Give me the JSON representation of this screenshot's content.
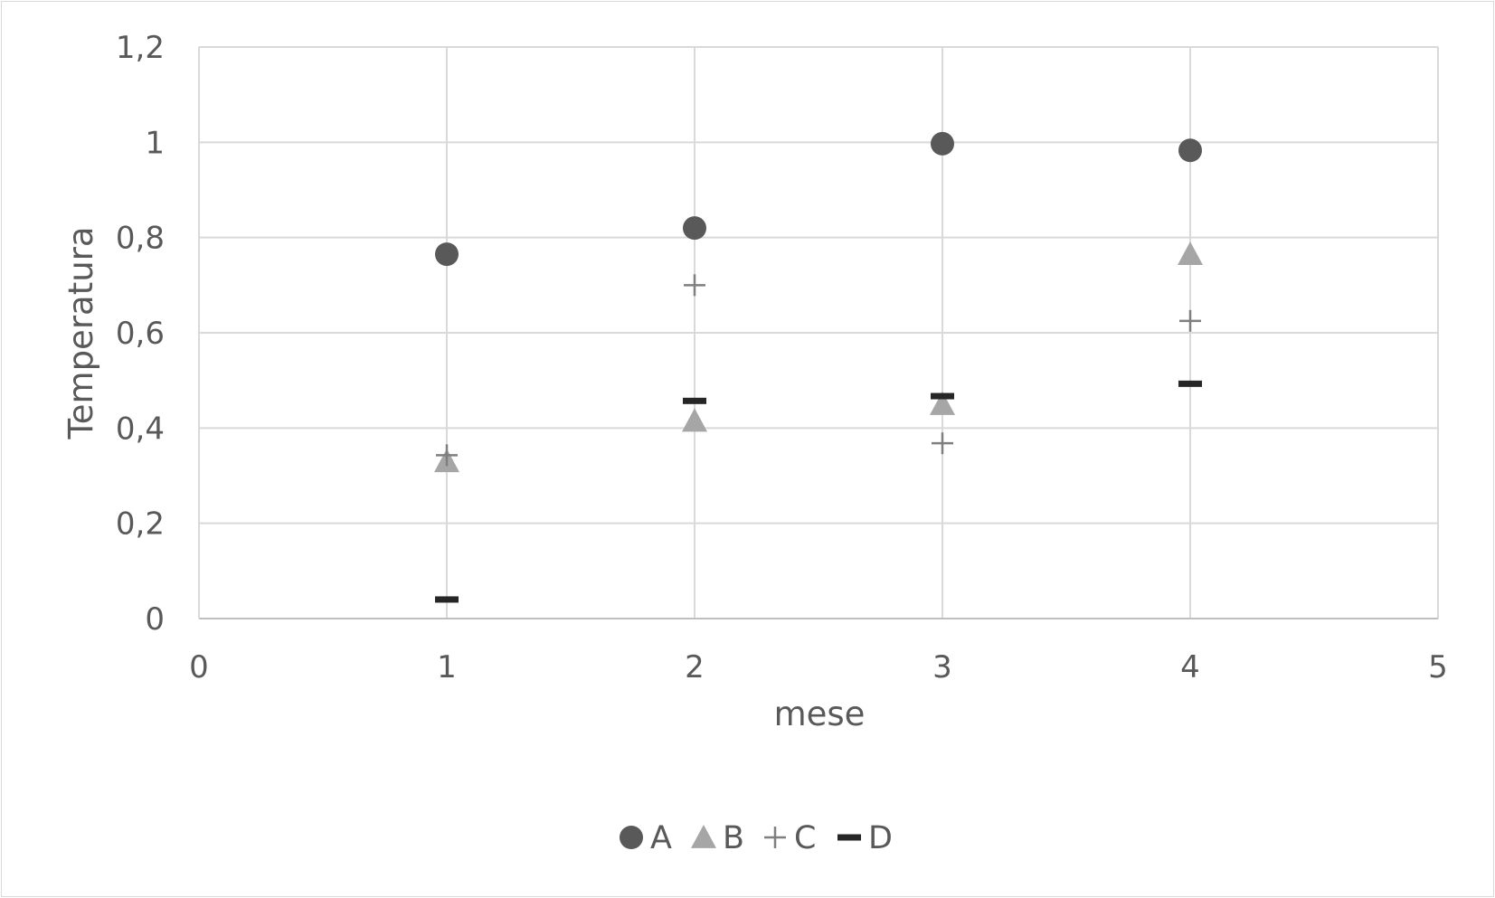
{
  "chart_data": {
    "type": "scatter",
    "title": "",
    "xlabel": "mese",
    "ylabel": "Temperatura",
    "xlim": [
      0,
      5
    ],
    "ylim": [
      0,
      1.2
    ],
    "x_ticks": [
      "0",
      "1",
      "2",
      "3",
      "4",
      "5"
    ],
    "y_ticks": [
      "0",
      "0,2",
      "0,4",
      "0,6",
      "0,8",
      "1",
      "1,2"
    ],
    "grid": true,
    "legend_position": "bottom",
    "series": [
      {
        "name": "A",
        "marker": "circle",
        "color": "#595959",
        "points": [
          [
            1,
            0.765
          ],
          [
            2,
            0.82
          ],
          [
            3,
            0.997
          ],
          [
            4,
            0.983
          ]
        ]
      },
      {
        "name": "B",
        "marker": "triangle",
        "color": "#a6a6a6",
        "points": [
          [
            1,
            0.33
          ],
          [
            2,
            0.415
          ],
          [
            3,
            0.45
          ],
          [
            4,
            0.765
          ]
        ]
      },
      {
        "name": "C",
        "marker": "plus",
        "color": "#7f7f7f",
        "points": [
          [
            1,
            0.343
          ],
          [
            2,
            0.7
          ],
          [
            3,
            0.368
          ],
          [
            4,
            0.625
          ]
        ]
      },
      {
        "name": "D",
        "marker": "dash",
        "color": "#262626",
        "points": [
          [
            1,
            0.04
          ],
          [
            2,
            0.457
          ],
          [
            3,
            0.467
          ],
          [
            4,
            0.493
          ]
        ]
      }
    ]
  }
}
